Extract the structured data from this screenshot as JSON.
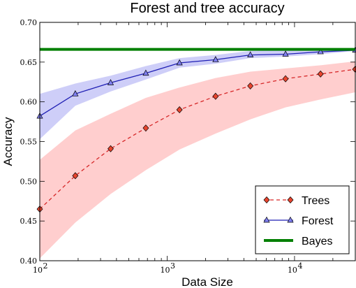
{
  "chart_data": {
    "type": "line",
    "title": "Forest and tree accuracy",
    "xlabel": "Data Size",
    "ylabel": "Accuracy",
    "xscale": "log",
    "xlim": [
      100,
      30000
    ],
    "ylim": [
      0.4,
      0.7
    ],
    "x_ticks": [
      {
        "value": 100,
        "base": "10",
        "exp": "2"
      },
      {
        "value": 1000,
        "base": "10",
        "exp": "3"
      },
      {
        "value": 10000,
        "base": "10",
        "exp": "4"
      }
    ],
    "y_ticks": [
      "0.40",
      "0.45",
      "0.50",
      "0.55",
      "0.60",
      "0.65",
      "0.70"
    ],
    "legend_position": "lower-right",
    "x": [
      100,
      190,
      360,
      680,
      1250,
      2400,
      4500,
      8500,
      16000,
      30000
    ],
    "series": [
      {
        "name": "Trees",
        "color": "#d62728",
        "line_style": "dashed",
        "marker": "diamond",
        "values": [
          0.465,
          0.507,
          0.541,
          0.567,
          0.59,
          0.607,
          0.62,
          0.629,
          0.635,
          0.641
        ],
        "band_lower": [
          0.403,
          0.448,
          0.484,
          0.514,
          0.54,
          0.56,
          0.578,
          0.593,
          0.603,
          0.612
        ],
        "band_upper": [
          0.527,
          0.564,
          0.585,
          0.605,
          0.618,
          0.63,
          0.638,
          0.642,
          0.646,
          0.651
        ],
        "band_color": "#ffb3b3"
      },
      {
        "name": "Forest",
        "color": "#1f1fb4",
        "line_style": "solid",
        "marker": "triangle",
        "values": [
          0.582,
          0.61,
          0.624,
          0.636,
          0.649,
          0.653,
          0.659,
          0.66,
          0.663,
          0.665
        ],
        "band_lower": [
          0.553,
          0.595,
          0.613,
          0.628,
          0.643,
          0.648,
          0.655,
          0.657,
          0.66,
          0.664
        ],
        "band_upper": [
          0.61,
          0.623,
          0.633,
          0.645,
          0.655,
          0.659,
          0.664,
          0.665,
          0.667,
          0.667
        ],
        "band_color": "#b3b3f5"
      },
      {
        "name": "Bayes",
        "color": "#007f00",
        "line_style": "solid",
        "marker": "none",
        "constant": 0.666
      }
    ]
  }
}
